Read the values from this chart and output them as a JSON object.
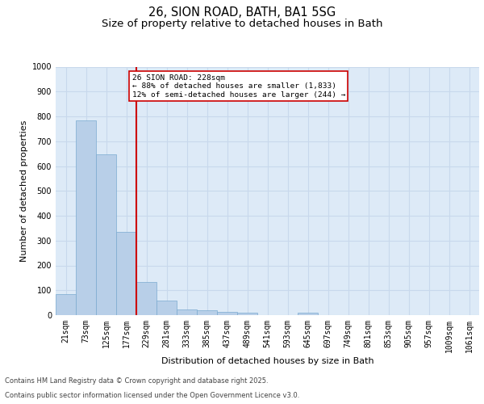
{
  "title_line1": "26, SION ROAD, BATH, BA1 5SG",
  "title_line2": "Size of property relative to detached houses in Bath",
  "xlabel": "Distribution of detached houses by size in Bath",
  "ylabel": "Number of detached properties",
  "bin_labels": [
    "21sqm",
    "73sqm",
    "125sqm",
    "177sqm",
    "229sqm",
    "281sqm",
    "333sqm",
    "385sqm",
    "437sqm",
    "489sqm",
    "541sqm",
    "593sqm",
    "645sqm",
    "697sqm",
    "749sqm",
    "801sqm",
    "853sqm",
    "905sqm",
    "957sqm",
    "1009sqm",
    "1061sqm"
  ],
  "bar_values": [
    83,
    783,
    648,
    335,
    133,
    58,
    24,
    20,
    12,
    9,
    0,
    0,
    10,
    0,
    0,
    0,
    0,
    0,
    0,
    0,
    0
  ],
  "bar_color": "#b8cfe8",
  "bar_edge_color": "#7aaad0",
  "bar_width": 1.0,
  "red_line_bin_index": 4,
  "red_line_color": "#cc0000",
  "annotation_text": "26 SION ROAD: 228sqm\n← 88% of detached houses are smaller (1,833)\n12% of semi-detached houses are larger (244) →",
  "annotation_box_color": "#ffffff",
  "annotation_edge_color": "#cc0000",
  "ylim": [
    0,
    1000
  ],
  "yticks": [
    0,
    100,
    200,
    300,
    400,
    500,
    600,
    700,
    800,
    900,
    1000
  ],
  "grid_color": "#c8d8ec",
  "plot_bg_color": "#ddeaf7",
  "fig_bg_color": "#ffffff",
  "footer_line1": "Contains HM Land Registry data © Crown copyright and database right 2025.",
  "footer_line2": "Contains public sector information licensed under the Open Government Licence v3.0.",
  "title_fontsize": 10.5,
  "subtitle_fontsize": 9.5,
  "ylabel_fontsize": 8,
  "xlabel_fontsize": 8,
  "tick_fontsize": 7,
  "annotation_fontsize": 6.8,
  "footer_fontsize": 6
}
